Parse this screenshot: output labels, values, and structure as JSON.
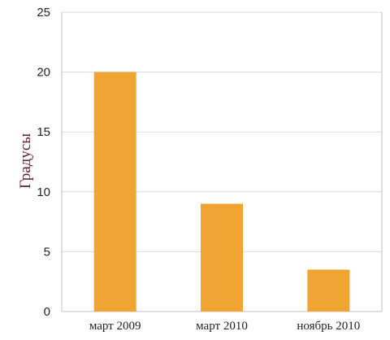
{
  "chart_data": {
    "type": "bar",
    "categories": [
      "март 2009",
      "март 2010",
      "ноябрь 2010"
    ],
    "values": [
      20,
      9,
      3.5
    ],
    "ylabel": "Градусы",
    "ylim": [
      0,
      25
    ],
    "yticks": [
      0,
      5,
      10,
      15,
      20,
      25
    ],
    "grid": true,
    "legend": "none",
    "colors": {
      "bar": "#f0a532",
      "ylabel": "#5a1f2a"
    }
  }
}
